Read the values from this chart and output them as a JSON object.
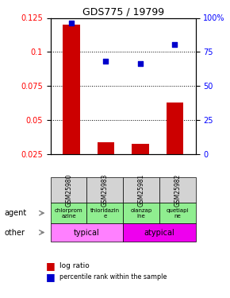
{
  "title": "GDS775 / 19799",
  "samples": [
    "GSM25980",
    "GSM25983",
    "GSM25981",
    "GSM25982"
  ],
  "log_ratio": [
    0.12,
    0.034,
    0.033,
    0.063
  ],
  "percentile_rank": [
    0.965,
    0.68,
    0.665,
    0.805
  ],
  "ylim_left": [
    0.025,
    0.125
  ],
  "ylim_right": [
    0,
    1.0
  ],
  "yticks_left": [
    0.025,
    0.05,
    0.075,
    0.1,
    0.125
  ],
  "yticks_right": [
    0,
    0.25,
    0.5,
    0.75,
    1.0
  ],
  "ytick_labels_right": [
    "0",
    "25",
    "50",
    "75",
    "100%"
  ],
  "agent_labels": [
    "chlorprom\nazine",
    "thioridazin\ne",
    "olanzap\nine",
    "quetiapi\nne"
  ],
  "bar_color": "#CC0000",
  "dot_color": "#0000CC",
  "bar_width": 0.5,
  "agent_bg": "#90EE90",
  "other_typical_bg": "#FF80FF",
  "other_atypical_bg": "#EE00EE",
  "sample_bg": "#D3D3D3"
}
